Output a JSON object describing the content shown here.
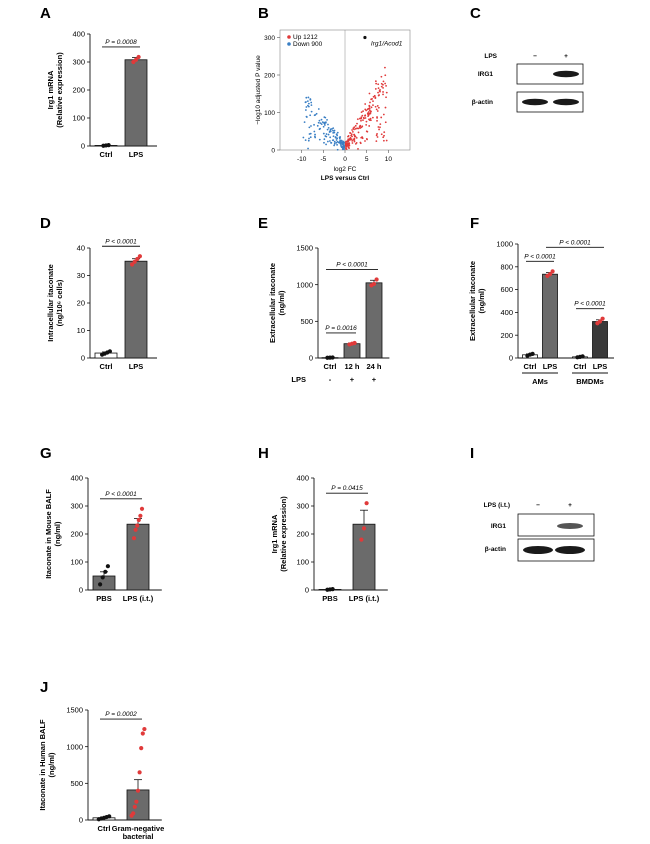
{
  "panels": {
    "A": "A",
    "B": "B",
    "C": "C",
    "D": "D",
    "E": "E",
    "F": "F",
    "G": "G",
    "H": "H",
    "I": "I",
    "J": "J"
  },
  "blots": {
    "C": {
      "lps_label": "LPS",
      "lane1_sign": "−",
      "lane2_sign": "+",
      "band1": "IRG1",
      "band2": "β-actin"
    },
    "I": {
      "lps_label": "LPS (i.t.)",
      "lane1_sign": "−",
      "lane2_sign": "+",
      "band1": "IRG1",
      "band2": "β-actin"
    }
  },
  "colors": {
    "bar": "#6b6b6b",
    "bar_dark": "#3a3a3a",
    "red": "#e03a3a",
    "blue": "#3a7fc4",
    "black": "#111111"
  },
  "chart_data": [
    {
      "id": "A",
      "type": "bar",
      "categories": [
        "Ctrl",
        "LPS"
      ],
      "values": [
        2,
        308
      ],
      "errors": [
        1,
        8
      ],
      "points": [
        [
          1,
          2,
          3
        ],
        [
          300,
          308,
          318
        ]
      ],
      "point_colors": [
        "black",
        "red"
      ],
      "ylabel_lines": [
        "Irg1 mRNA",
        "(Relative expression)"
      ],
      "ylim": [
        0,
        400
      ],
      "yticks": [
        0,
        100,
        200,
        300,
        400
      ],
      "sig": [
        {
          "from": 0,
          "to": 1,
          "label": "P = 0.0008"
        }
      ]
    },
    {
      "id": "B",
      "type": "scatter",
      "title": "",
      "xlabel": "log2 FC",
      "xlabel_sub": "LPS versus Ctrl",
      "ylabel": "−log10 adjusted P value",
      "xlim": [
        -15,
        15
      ],
      "ylim": [
        0,
        320
      ],
      "xticks": [
        -10,
        -5,
        0,
        5,
        10
      ],
      "yticks": [
        0,
        100,
        200,
        300
      ],
      "legend": [
        {
          "name": "Up 1212",
          "color": "red"
        },
        {
          "name": "Down 900",
          "color": "blue"
        }
      ],
      "annotation": "Irg1/Acod1",
      "highlight_point": [
        4.6,
        300
      ],
      "up_count": 1212,
      "down_count": 900
    },
    {
      "id": "D",
      "type": "bar",
      "categories": [
        "Ctrl",
        "LPS"
      ],
      "values": [
        1.8,
        35.2
      ],
      "errors": [
        0.4,
        0.9
      ],
      "points": [
        [
          1.2,
          1.6,
          2.0,
          2.4
        ],
        [
          34.0,
          35.0,
          36.0,
          37.0
        ]
      ],
      "point_colors": [
        "black",
        "red"
      ],
      "ylabel_lines": [
        "Intracellular itaconate",
        "(ng/10⁶ cells)"
      ],
      "ylim": [
        0,
        40
      ],
      "yticks": [
        0,
        10,
        20,
        30,
        40
      ],
      "sig": [
        {
          "from": 0,
          "to": 1,
          "label": "P < 0.0001"
        }
      ]
    },
    {
      "id": "E",
      "type": "bar",
      "categories": [
        "Ctrl",
        "12 h",
        "24 h"
      ],
      "values": [
        5,
        195,
        1025
      ],
      "errors": [
        2,
        10,
        35
      ],
      "points": [
        [
          3,
          5,
          7
        ],
        [
          185,
          195,
          205
        ],
        [
          990,
          1010,
          1070
        ]
      ],
      "point_colors": [
        "black",
        "red",
        "red"
      ],
      "ylabel_lines": [
        "Extracellular itaconate",
        "(ng/ml)"
      ],
      "ylim": [
        0,
        1500
      ],
      "yticks": [
        0,
        500,
        1000,
        1500
      ],
      "sig": [
        {
          "from": 0,
          "to": 1,
          "label": "P = 0.0016"
        },
        {
          "from": 0,
          "to": 2,
          "label": "P < 0.0001"
        }
      ],
      "lps_row_label": "LPS",
      "lps_row": [
        "-",
        "+",
        "+"
      ]
    },
    {
      "id": "F",
      "type": "bar",
      "categories": [
        "Ctrl",
        "LPS",
        "Ctrl",
        "LPS"
      ],
      "groups": [
        {
          "name": "AMs",
          "members": [
            0,
            1
          ]
        },
        {
          "name": "BMDMs",
          "members": [
            2,
            3
          ]
        }
      ],
      "values": [
        28,
        735,
        10,
        320
      ],
      "errors": [
        8,
        15,
        4,
        15
      ],
      "points": [
        [
          20,
          30,
          36
        ],
        [
          720,
          735,
          760
        ],
        [
          6,
          10,
          14
        ],
        [
          305,
          320,
          345
        ]
      ],
      "point_colors": [
        "black",
        "red",
        "black",
        "red"
      ],
      "ylabel_lines": [
        "Extracellular itaconate",
        "(ng/ml)"
      ],
      "ylim": [
        0,
        1000
      ],
      "yticks": [
        0,
        200,
        400,
        600,
        800,
        1000
      ],
      "sig": [
        {
          "from": 0,
          "to": 1,
          "label": "P < 0.0001"
        },
        {
          "from": 2,
          "to": 3,
          "label": "P < 0.0001"
        },
        {
          "from": 1,
          "to": 3,
          "label": "P < 0.0001"
        }
      ]
    },
    {
      "id": "G",
      "type": "bar",
      "categories": [
        "PBS",
        "LPS (i.t.)"
      ],
      "values": [
        50,
        235
      ],
      "errors": [
        15,
        20
      ],
      "points": [
        [
          20,
          45,
          65,
          85
        ],
        [
          185,
          215,
          230,
          250,
          265,
          290
        ]
      ],
      "point_colors": [
        "black",
        "red"
      ],
      "ylabel_lines": [
        "Itaconate in Mouse BALF",
        "(ng/ml)"
      ],
      "ylim": [
        0,
        400
      ],
      "yticks": [
        0,
        100,
        200,
        300,
        400
      ],
      "sig": [
        {
          "from": 0,
          "to": 1,
          "label": "P < 0.0001"
        }
      ]
    },
    {
      "id": "H",
      "type": "bar",
      "categories": [
        "PBS",
        "LPS (i.t.)"
      ],
      "values": [
        2,
        235
      ],
      "errors": [
        1,
        50
      ],
      "points": [
        [
          1,
          2,
          3
        ],
        [
          180,
          220,
          310
        ]
      ],
      "point_colors": [
        "black",
        "red"
      ],
      "ylabel_lines": [
        "Irg1 mRNA",
        "(Relative expression)"
      ],
      "ylim": [
        0,
        400
      ],
      "yticks": [
        0,
        100,
        200,
        300,
        400
      ],
      "sig": [
        {
          "from": 0,
          "to": 1,
          "label": "P = 0.0415"
        }
      ]
    },
    {
      "id": "J",
      "type": "bar",
      "categories": [
        "Ctrl",
        "Gram-negative bacterial"
      ],
      "category_lines": [
        [
          "Ctrl"
        ],
        [
          "Gram-negative",
          "bacterial"
        ]
      ],
      "values": [
        30,
        410
      ],
      "errors": [
        8,
        140
      ],
      "points": [
        [
          10,
          20,
          30,
          40,
          50
        ],
        [
          60,
          90,
          180,
          250,
          400,
          650,
          980,
          1180,
          1240
        ]
      ],
      "point_colors": [
        "black",
        "red"
      ],
      "ylabel_lines": [
        "Itaconate in Human BALF",
        "(ng/ml)"
      ],
      "ylim": [
        0,
        1500
      ],
      "yticks": [
        0,
        500,
        1000,
        1500
      ],
      "sig": [
        {
          "from": 0,
          "to": 1,
          "label": "P = 0.0002"
        }
      ]
    }
  ]
}
